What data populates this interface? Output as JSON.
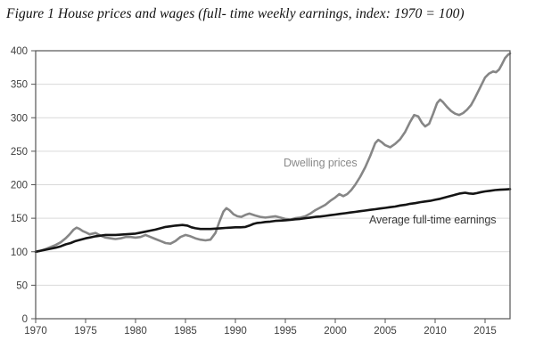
{
  "title": "Figure 1 House prices and wages (full- time weekly earnings, index: 1970 = 100)",
  "colors": {
    "background": "#ffffff",
    "grid": "#d9d9d9",
    "axis": "#555555",
    "tick_text": "#404040",
    "dwelling_line": "#868686",
    "earnings_line": "#141414"
  },
  "chart_data": {
    "type": "line",
    "title": "Figure 1 House prices and wages (full- time weekly earnings, index: 1970 = 100)",
    "xlabel": "",
    "ylabel": "",
    "x_range": [
      1970,
      2017.5
    ],
    "y_range": [
      0,
      400
    ],
    "x_ticks": [
      1970,
      1975,
      1980,
      1985,
      1990,
      1995,
      2000,
      2005,
      2010,
      2015
    ],
    "y_ticks": [
      0,
      50,
      100,
      150,
      200,
      250,
      300,
      350,
      400
    ],
    "grid": "horizontal",
    "legend_position": "inline-annotations",
    "series": [
      {
        "name": "Dwelling prices",
        "color": "#868686",
        "points": [
          [
            1970,
            100
          ],
          [
            1970.5,
            101.5
          ],
          [
            1971,
            104
          ],
          [
            1971.5,
            107
          ],
          [
            1972,
            110
          ],
          [
            1972.5,
            114
          ],
          [
            1973,
            120
          ],
          [
            1973.4,
            126
          ],
          [
            1973.8,
            133
          ],
          [
            1974.1,
            136
          ],
          [
            1974.4,
            134
          ],
          [
            1974.7,
            131
          ],
          [
            1975,
            129
          ],
          [
            1975.4,
            126
          ],
          [
            1976,
            128
          ],
          [
            1976.5,
            124
          ],
          [
            1977,
            121
          ],
          [
            1977.5,
            120
          ],
          [
            1978,
            119
          ],
          [
            1978.5,
            120
          ],
          [
            1979,
            122
          ],
          [
            1979.5,
            122
          ],
          [
            1980,
            121
          ],
          [
            1980.5,
            122
          ],
          [
            1981,
            125
          ],
          [
            1981.5,
            122
          ],
          [
            1982,
            119
          ],
          [
            1982.5,
            116
          ],
          [
            1983,
            113
          ],
          [
            1983.5,
            112
          ],
          [
            1984,
            116
          ],
          [
            1984.5,
            122
          ],
          [
            1985,
            125
          ],
          [
            1985.5,
            123
          ],
          [
            1986,
            120
          ],
          [
            1986.5,
            118
          ],
          [
            1987,
            117
          ],
          [
            1987.5,
            118
          ],
          [
            1988,
            128
          ],
          [
            1988.4,
            145
          ],
          [
            1988.8,
            160
          ],
          [
            1989.1,
            165
          ],
          [
            1989.4,
            162
          ],
          [
            1989.8,
            156
          ],
          [
            1990.2,
            153
          ],
          [
            1990.6,
            152
          ],
          [
            1991,
            155
          ],
          [
            1991.4,
            157
          ],
          [
            1992,
            154
          ],
          [
            1992.5,
            152
          ],
          [
            1993,
            151
          ],
          [
            1993.5,
            152
          ],
          [
            1994,
            153
          ],
          [
            1994.5,
            151
          ],
          [
            1995,
            149
          ],
          [
            1995.5,
            148
          ],
          [
            1996,
            150
          ],
          [
            1996.5,
            151
          ],
          [
            1997,
            153
          ],
          [
            1997.5,
            157
          ],
          [
            1998,
            162
          ],
          [
            1998.5,
            166
          ],
          [
            1999,
            170
          ],
          [
            1999.5,
            176
          ],
          [
            2000,
            181
          ],
          [
            2000.4,
            186
          ],
          [
            2000.8,
            183
          ],
          [
            2001.2,
            186
          ],
          [
            2001.6,
            192
          ],
          [
            2002,
            200
          ],
          [
            2002.5,
            212
          ],
          [
            2003,
            226
          ],
          [
            2003.5,
            243
          ],
          [
            2004,
            262
          ],
          [
            2004.3,
            267
          ],
          [
            2004.7,
            263
          ],
          [
            2005,
            259
          ],
          [
            2005.5,
            256
          ],
          [
            2006,
            261
          ],
          [
            2006.5,
            268
          ],
          [
            2007,
            279
          ],
          [
            2007.5,
            294
          ],
          [
            2007.9,
            304
          ],
          [
            2008.3,
            302
          ],
          [
            2008.7,
            292
          ],
          [
            2009,
            287
          ],
          [
            2009.4,
            291
          ],
          [
            2009.8,
            306
          ],
          [
            2010.2,
            322
          ],
          [
            2010.5,
            327
          ],
          [
            2010.8,
            323
          ],
          [
            2011.2,
            316
          ],
          [
            2011.6,
            310
          ],
          [
            2012,
            306
          ],
          [
            2012.4,
            304
          ],
          [
            2012.8,
            307
          ],
          [
            2013.2,
            312
          ],
          [
            2013.6,
            319
          ],
          [
            2014,
            330
          ],
          [
            2014.5,
            345
          ],
          [
            2015,
            360
          ],
          [
            2015.4,
            366
          ],
          [
            2015.8,
            369
          ],
          [
            2016.1,
            368
          ],
          [
            2016.4,
            372
          ],
          [
            2016.7,
            380
          ],
          [
            2017,
            389
          ],
          [
            2017.3,
            394
          ],
          [
            2017.5,
            396
          ]
        ]
      },
      {
        "name": "Average full-time earnings",
        "color": "#141414",
        "points": [
          [
            1970,
            100
          ],
          [
            1970.5,
            101.5
          ],
          [
            1971,
            103
          ],
          [
            1971.5,
            104.5
          ],
          [
            1972,
            106
          ],
          [
            1972.5,
            108
          ],
          [
            1973,
            111
          ],
          [
            1973.5,
            113
          ],
          [
            1974,
            116
          ],
          [
            1974.5,
            118
          ],
          [
            1975,
            120
          ],
          [
            1975.5,
            121.5
          ],
          [
            1976,
            123
          ],
          [
            1976.5,
            124
          ],
          [
            1977,
            125
          ],
          [
            1977.5,
            125
          ],
          [
            1978,
            125
          ],
          [
            1978.5,
            125.5
          ],
          [
            1979,
            126
          ],
          [
            1979.5,
            126.5
          ],
          [
            1980,
            127
          ],
          [
            1980.5,
            128.5
          ],
          [
            1981,
            130
          ],
          [
            1981.5,
            131.5
          ],
          [
            1982,
            133
          ],
          [
            1982.5,
            135
          ],
          [
            1983,
            137
          ],
          [
            1983.5,
            138
          ],
          [
            1984,
            139
          ],
          [
            1984.7,
            140
          ],
          [
            1985.2,
            139
          ],
          [
            1985.6,
            136.5
          ],
          [
            1986,
            135
          ],
          [
            1986.5,
            134
          ],
          [
            1987,
            134
          ],
          [
            1987.5,
            134
          ],
          [
            1988,
            134.5
          ],
          [
            1988.5,
            135
          ],
          [
            1989,
            135.5
          ],
          [
            1989.5,
            136
          ],
          [
            1990,
            136.5
          ],
          [
            1990.5,
            136.5
          ],
          [
            1991,
            137
          ],
          [
            1991.4,
            139
          ],
          [
            1991.8,
            141.5
          ],
          [
            1992.2,
            143
          ],
          [
            1992.6,
            143.5
          ],
          [
            1993,
            144.5
          ],
          [
            1993.5,
            145
          ],
          [
            1994,
            146
          ],
          [
            1994.5,
            146.5
          ],
          [
            1995,
            147
          ],
          [
            1995.5,
            147.5
          ],
          [
            1996,
            148.5
          ],
          [
            1996.5,
            149
          ],
          [
            1997,
            150
          ],
          [
            1997.5,
            151
          ],
          [
            1998,
            152
          ],
          [
            1998.5,
            152.5
          ],
          [
            1999,
            153.5
          ],
          [
            1999.5,
            154.5
          ],
          [
            2000,
            155.5
          ],
          [
            2000.5,
            156.5
          ],
          [
            2001,
            157.5
          ],
          [
            2001.5,
            158.5
          ],
          [
            2002,
            159.5
          ],
          [
            2002.5,
            160.5
          ],
          [
            2003,
            161.5
          ],
          [
            2003.5,
            162.5
          ],
          [
            2004,
            163.5
          ],
          [
            2004.5,
            164.5
          ],
          [
            2005,
            165.5
          ],
          [
            2005.5,
            166.5
          ],
          [
            2006,
            167.5
          ],
          [
            2006.5,
            169
          ],
          [
            2007,
            170
          ],
          [
            2007.5,
            171.5
          ],
          [
            2008,
            172.5
          ],
          [
            2008.5,
            174
          ],
          [
            2009,
            175
          ],
          [
            2009.5,
            176
          ],
          [
            2010,
            177.5
          ],
          [
            2010.5,
            179
          ],
          [
            2011,
            181
          ],
          [
            2011.5,
            183
          ],
          [
            2012,
            185
          ],
          [
            2012.5,
            187
          ],
          [
            2013,
            188
          ],
          [
            2013.4,
            187
          ],
          [
            2013.8,
            186.5
          ],
          [
            2014.2,
            187.5
          ],
          [
            2014.6,
            189
          ],
          [
            2015,
            190
          ],
          [
            2015.5,
            191
          ],
          [
            2016,
            192
          ],
          [
            2016.5,
            192.5
          ],
          [
            2017,
            193
          ],
          [
            2017.5,
            193.5
          ]
        ]
      }
    ],
    "annotations": [
      {
        "text": "Dwelling prices",
        "x": 318,
        "y": 176,
        "color": "#8a8a8a"
      },
      {
        "text": "Average full-time earnings",
        "x": 414,
        "y": 240,
        "color": "#3a3a3a"
      }
    ]
  }
}
